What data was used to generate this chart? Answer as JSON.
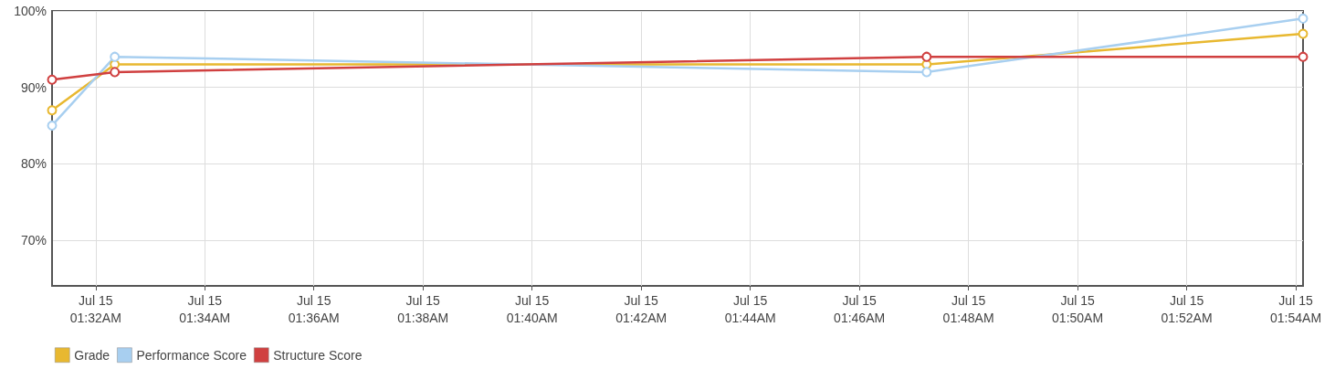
{
  "chart_data": {
    "type": "line",
    "x": [
      "--07-15T01:31:12",
      "--07-15T01:32:21",
      "--07-15T01:47:14",
      "--07-15T01:54:08"
    ],
    "series": [
      {
        "name": "Grade",
        "color": "#e8b830",
        "values": [
          87,
          93,
          93,
          97
        ]
      },
      {
        "name": "Performance Score",
        "color": "#a8cff0",
        "values": [
          85,
          94,
          92,
          99
        ]
      },
      {
        "name": "Structure Score",
        "color": "#d04040",
        "values": [
          91,
          92,
          94,
          94
        ]
      }
    ],
    "xlim": [
      "--07-15T01:31:12",
      "--07-15T01:54:08"
    ],
    "xticks": [
      {
        "value": "--07-15T01:32",
        "label": "Jul 15\n01:32AM"
      },
      {
        "value": "--07-15T01:34",
        "label": "Jul 15\n01:34AM"
      },
      {
        "value": "--07-15T01:36",
        "label": "Jul 15\n01:36AM"
      },
      {
        "value": "--07-15T01:38",
        "label": "Jul 15\n01:38AM"
      },
      {
        "value": "--07-15T01:40",
        "label": "Jul 15\n01:40AM"
      },
      {
        "value": "--07-15T01:42",
        "label": "Jul 15\n01:42AM"
      },
      {
        "value": "--07-15T01:44",
        "label": "Jul 15\n01:44AM"
      },
      {
        "value": "--07-15T01:46",
        "label": "Jul 15\n01:46AM"
      },
      {
        "value": "--07-15T01:48",
        "label": "Jul 15\n01:48AM"
      },
      {
        "value": "--07-15T01:50",
        "label": "Jul 15\n01:50AM"
      },
      {
        "value": "--07-15T01:52",
        "label": "Jul 15\n01:52AM"
      },
      {
        "value": "--07-15T01:54",
        "label": "Jul 15\n01:54AM"
      }
    ],
    "ylim": [
      64,
      100
    ],
    "yticks": [
      {
        "value": 70,
        "label": "70%"
      },
      {
        "value": 80,
        "label": "80%"
      },
      {
        "value": 90,
        "label": "90%"
      },
      {
        "value": 100,
        "label": "100%"
      }
    ],
    "grid": true,
    "legend": "bottom left",
    "marker": "circle",
    "line_style": "solid"
  }
}
